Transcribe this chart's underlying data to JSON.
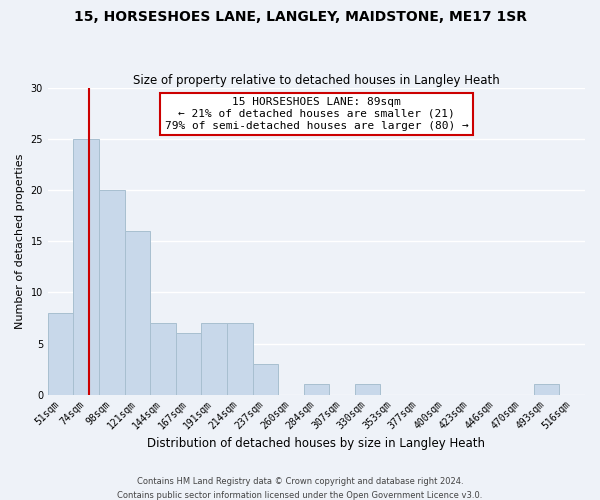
{
  "title": "15, HORSESHOES LANE, LANGLEY, MAIDSTONE, ME17 1SR",
  "subtitle": "Size of property relative to detached houses in Langley Heath",
  "xlabel": "Distribution of detached houses by size in Langley Heath",
  "ylabel": "Number of detached properties",
  "bar_labels": [
    "51sqm",
    "74sqm",
    "98sqm",
    "121sqm",
    "144sqm",
    "167sqm",
    "191sqm",
    "214sqm",
    "237sqm",
    "260sqm",
    "284sqm",
    "307sqm",
    "330sqm",
    "353sqm",
    "377sqm",
    "400sqm",
    "423sqm",
    "446sqm",
    "470sqm",
    "493sqm",
    "516sqm"
  ],
  "bar_values": [
    8,
    25,
    20,
    16,
    7,
    6,
    7,
    7,
    3,
    0,
    1,
    0,
    1,
    0,
    0,
    0,
    0,
    0,
    0,
    1,
    0
  ],
  "bar_color": "#c8d8ea",
  "bar_edge_color": "#a8bfd0",
  "ylim": [
    0,
    30
  ],
  "yticks": [
    0,
    5,
    10,
    15,
    20,
    25,
    30
  ],
  "vline_color": "#cc0000",
  "annotation_title": "15 HORSESHOES LANE: 89sqm",
  "annotation_line1": "← 21% of detached houses are smaller (21)",
  "annotation_line2": "79% of semi-detached houses are larger (80) →",
  "annotation_box_color": "#ffffff",
  "annotation_box_edge": "#cc0000",
  "footer_line1": "Contains HM Land Registry data © Crown copyright and database right 2024.",
  "footer_line2": "Contains public sector information licensed under the Open Government Licence v3.0.",
  "background_color": "#eef2f8",
  "grid_color": "#ffffff",
  "title_fontsize": 10,
  "subtitle_fontsize": 8.5,
  "xlabel_fontsize": 8.5,
  "ylabel_fontsize": 8,
  "tick_fontsize": 7,
  "footer_fontsize": 6,
  "annotation_fontsize": 8
}
